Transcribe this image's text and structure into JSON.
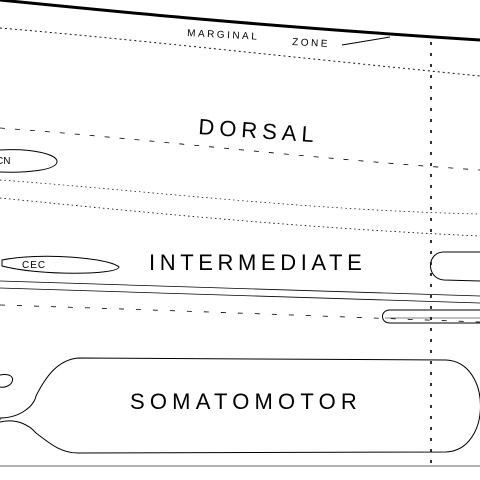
{
  "diagram": {
    "labels": {
      "marginal": "MARGINAL",
      "zone": "ZONE",
      "dorsal": "DORSAL",
      "cn": "CN",
      "cec": "CEC",
      "intermediate": "INTERMEDIATE",
      "somatomotor": "SOMATOMOTOR"
    },
    "colors": {
      "line": "#000000",
      "bottom_rule": "#999999",
      "background": "#ffffff"
    }
  }
}
